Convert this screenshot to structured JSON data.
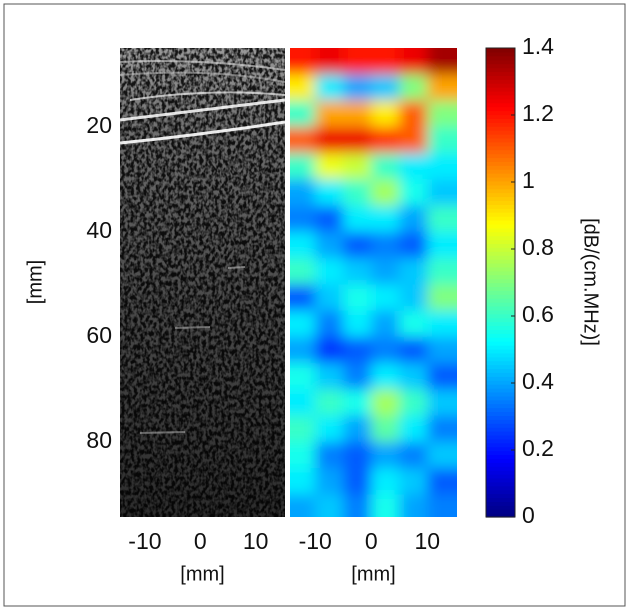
{
  "chart_data": [
    {
      "type": "image",
      "ylabel": "[mm]",
      "xlabel": "[mm]",
      "xlim": [
        -14.5,
        15.3
      ],
      "xticks": [
        -10,
        0,
        10
      ],
      "ylim": [
        5,
        94.3
      ],
      "yticks": [
        20,
        40,
        60,
        80
      ]
    },
    {
      "type": "heatmap",
      "xlabel": "[mm]",
      "xlim": [
        -14.5,
        15.3
      ],
      "xticks": [
        -10,
        0,
        10
      ],
      "ylim": [
        5,
        94.3
      ],
      "x": [
        -12.5,
        -7.5,
        -2.5,
        2.5,
        7.5,
        12.5
      ],
      "y": [
        7.5,
        12.5,
        17.5,
        22.5,
        27.5,
        32.5,
        37.5,
        42.5,
        47.5,
        52.5,
        57.5,
        62.5,
        67.5,
        72.5,
        77.5,
        82.5,
        87.5,
        92.5
      ],
      "z": [
        [
          1.2,
          1.25,
          1.2,
          1.2,
          1.25,
          1.35
        ],
        [
          0.9,
          0.5,
          0.4,
          0.45,
          0.7,
          1.0
        ],
        [
          0.6,
          1.0,
          1.0,
          0.9,
          1.1,
          0.7
        ],
        [
          1.1,
          1.25,
          1.25,
          1.15,
          1.1,
          0.6
        ],
        [
          0.6,
          0.85,
          0.8,
          0.6,
          0.5,
          0.5
        ],
        [
          0.4,
          0.5,
          0.6,
          0.75,
          0.55,
          0.45
        ],
        [
          0.35,
          0.3,
          0.5,
          0.5,
          0.4,
          0.6
        ],
        [
          0.5,
          0.4,
          0.3,
          0.35,
          0.3,
          0.5
        ],
        [
          0.6,
          0.5,
          0.45,
          0.4,
          0.45,
          0.6
        ],
        [
          0.3,
          0.45,
          0.55,
          0.5,
          0.45,
          0.7
        ],
        [
          0.5,
          0.35,
          0.5,
          0.4,
          0.55,
          0.5
        ],
        [
          0.4,
          0.25,
          0.3,
          0.35,
          0.3,
          0.4
        ],
        [
          0.55,
          0.45,
          0.35,
          0.5,
          0.45,
          0.3
        ],
        [
          0.5,
          0.6,
          0.55,
          0.75,
          0.6,
          0.45
        ],
        [
          0.6,
          0.5,
          0.4,
          0.65,
          0.5,
          0.35
        ],
        [
          0.55,
          0.35,
          0.3,
          0.4,
          0.35,
          0.45
        ],
        [
          0.5,
          0.4,
          0.3,
          0.5,
          0.45,
          0.3
        ],
        [
          0.4,
          0.45,
          0.35,
          0.55,
          0.4,
          0.35
        ]
      ],
      "colormap": "jet",
      "colorbar": {
        "label": "[dB/(cm.MHz)]",
        "lim": [
          0,
          1.4
        ],
        "ticks": [
          0,
          0.2,
          0.4,
          0.6,
          0.8,
          1,
          1.2,
          1.4
        ]
      }
    }
  ]
}
